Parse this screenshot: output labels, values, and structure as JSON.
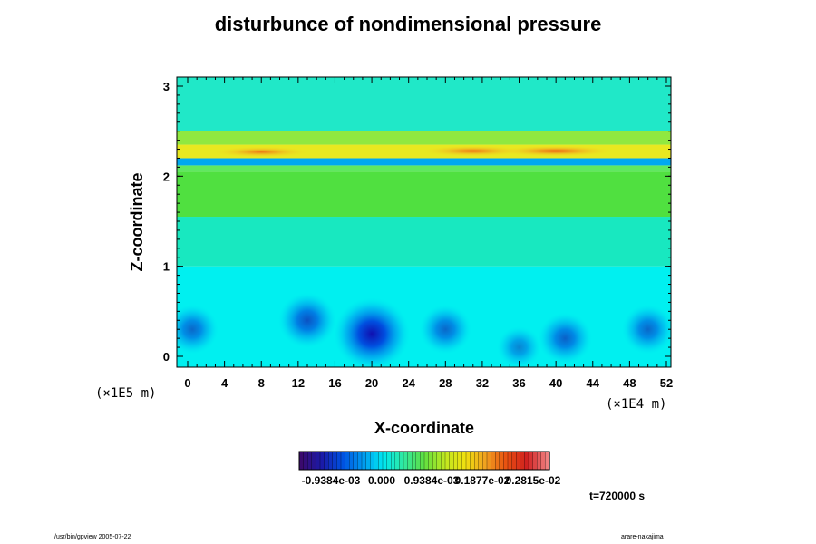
{
  "chart_data": {
    "type": "heatmap",
    "title": "disturbunce of nondimensional pressure",
    "xlabel": "X-coordinate",
    "ylabel": "Z-coordinate",
    "x_scale_label": "(×1E4 m)",
    "y_scale_label": "(×1E5 m)",
    "x_ticks": [
      "0",
      "4",
      "8",
      "12",
      "16",
      "20",
      "24",
      "28",
      "32",
      "36",
      "40",
      "44",
      "48",
      "52"
    ],
    "y_ticks": [
      "0",
      "1",
      "2",
      "3"
    ],
    "xlim": [
      0,
      52
    ],
    "ylim": [
      0,
      3
    ],
    "colorbar_labels": [
      "-0.9384e-03",
      "0.000",
      "0.9384e-03",
      "0.1877e-02",
      "0.2815e-02"
    ],
    "colormap": [
      "#3a0a6e",
      "#1a1aa8",
      "#0050e0",
      "#0098f0",
      "#00e8f0",
      "#30e8a0",
      "#60e040",
      "#c0e820",
      "#f0e010",
      "#f0a020",
      "#e85010",
      "#d02020",
      "#f08080"
    ],
    "bands": [
      {
        "z0": 0.0,
        "z1": 1.0,
        "color": "#00f0f0"
      },
      {
        "z0": 1.0,
        "z1": 1.55,
        "color": "#18e8c0"
      },
      {
        "z0": 1.55,
        "z1": 2.05,
        "color": "#50e040"
      },
      {
        "z0": 2.05,
        "z1": 2.12,
        "color": "#60e860"
      },
      {
        "z0": 2.12,
        "z1": 2.2,
        "color": "#00a8f0"
      },
      {
        "z0": 2.2,
        "z1": 2.35,
        "color": "#e8e820"
      },
      {
        "z0": 2.35,
        "z1": 2.5,
        "color": "#90e840"
      },
      {
        "z0": 2.5,
        "z1": 3.1,
        "color": "#20e8c8"
      }
    ],
    "blobs": [
      {
        "x": 20,
        "z": 0.25,
        "amp": -1.0
      },
      {
        "x": 13,
        "z": 0.4,
        "amp": -0.55
      },
      {
        "x": 28,
        "z": 0.3,
        "amp": -0.4
      },
      {
        "x": 41,
        "z": 0.2,
        "amp": -0.45
      },
      {
        "x": 50,
        "z": 0.3,
        "amp": -0.4
      },
      {
        "x": 0.5,
        "z": 0.3,
        "amp": -0.4
      },
      {
        "x": 36,
        "z": 0.1,
        "amp": -0.2
      },
      {
        "x": 40,
        "z": 2.28,
        "amp": 0.9
      },
      {
        "x": 31,
        "z": 2.28,
        "amp": 0.7
      },
      {
        "x": 8,
        "z": 2.27,
        "amp": 0.6
      }
    ],
    "time_label": "t=720000 s"
  },
  "footer_left": "/usr/bin/gpview 2005-07-22",
  "footer_right": "arare-nakajima"
}
